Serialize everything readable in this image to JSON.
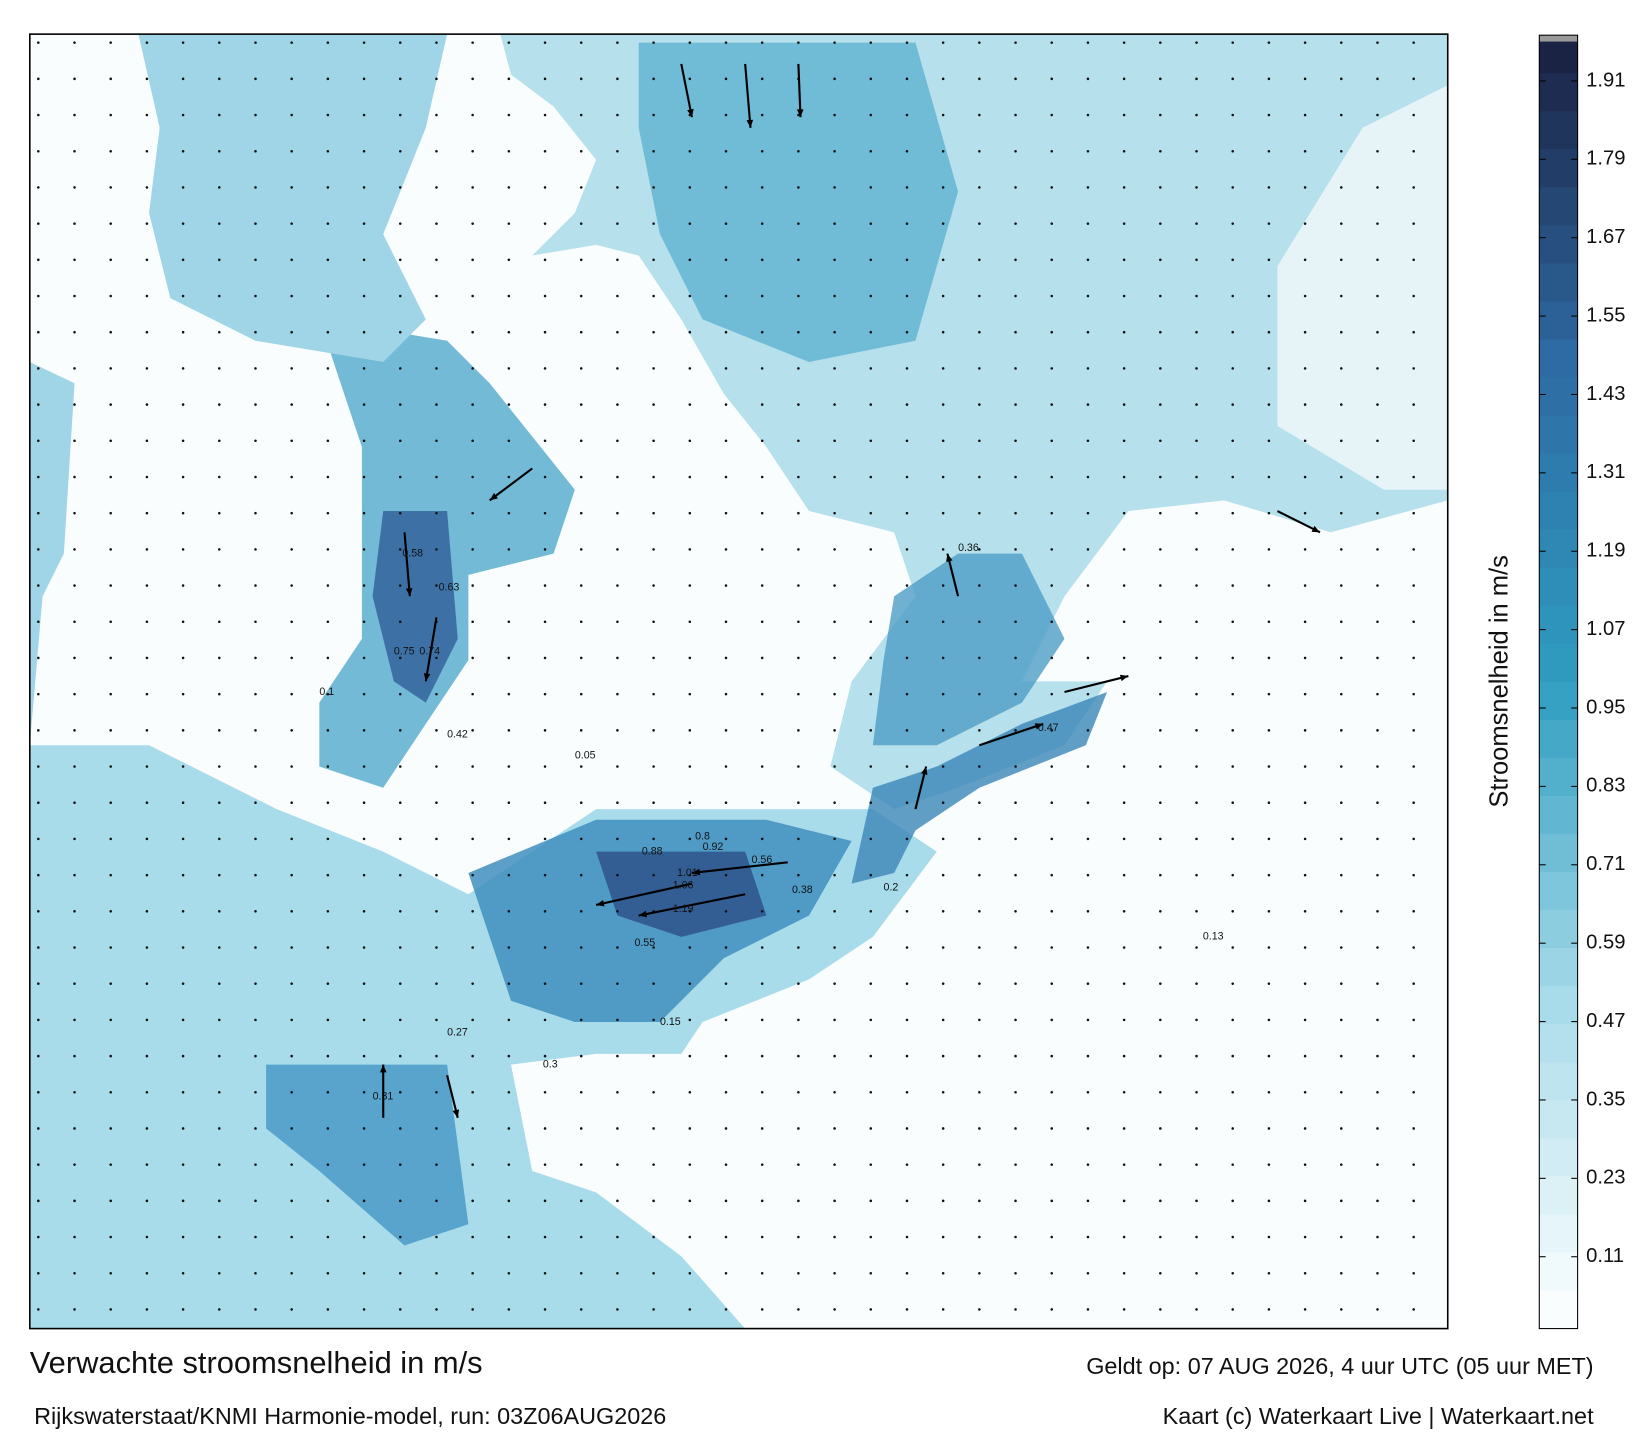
{
  "title": "Verwachte stroomsnelheid in m/s",
  "model_run": "Rijkswaterstaat/KNMI Harmonie-model, run: 03Z06AUG2026",
  "valid_time": "Geldt op: 07 AUG 2026, 4 uur UTC (05 uur MET)",
  "credit": "Kaart (c) Waterkaart Live | Waterkaart.net",
  "colorbar": {
    "label": "Stroomsnelheid in m/s",
    "range": [
      0,
      1.98
    ],
    "ticks": [
      0.11,
      0.23,
      0.35,
      0.47,
      0.59,
      0.71,
      0.83,
      0.95,
      1.07,
      1.19,
      1.31,
      1.43,
      1.55,
      1.67,
      1.79,
      1.91
    ],
    "colors": [
      "#ffffff",
      "#a9dcea",
      "#2f9dc0",
      "#2e6aa3",
      "#1a1f3f"
    ]
  },
  "current_labels": [
    0.75,
    0.74,
    1.06,
    1.19,
    1.01,
    0.92,
    0.88,
    0.8,
    0.63,
    0.58,
    0.55,
    0.56,
    0.42,
    0.38,
    0.3,
    0.31,
    0.2,
    0.15,
    0.1,
    0.05,
    0.47,
    0.36,
    0.27,
    0.13
  ]
}
